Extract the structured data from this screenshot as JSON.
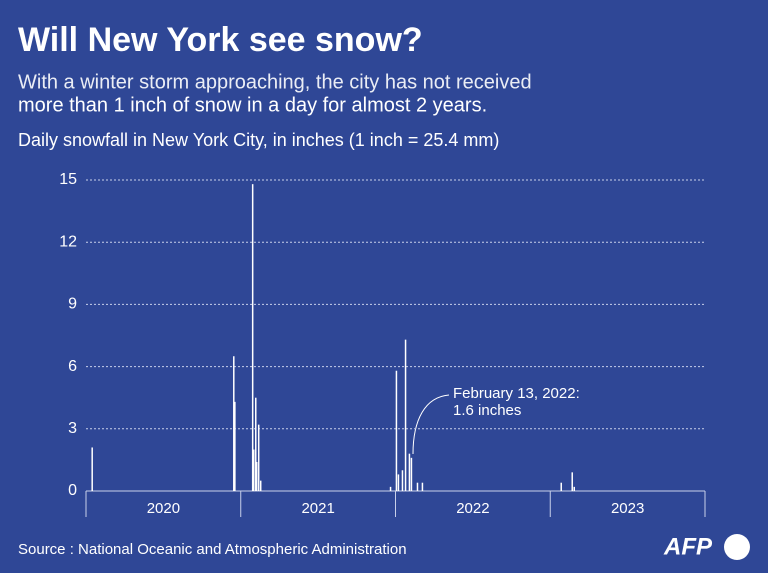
{
  "chart_data": {
    "type": "bar",
    "title": "Will New York see snow?",
    "subtitle": [
      "With a winter storm approaching, the city has not received",
      "more than 1 inch of snow in a day for almost 2 years."
    ],
    "y_label": "Daily snowfall in New York City, in inches (1 inch = 25.4 mm)",
    "x": [
      2020.04,
      2020.955,
      2020.962,
      2021.077,
      2021.084,
      2021.097,
      2021.103,
      2021.116,
      2021.129,
      2021.968,
      2022.006,
      2022.019,
      2022.045,
      2022.065,
      2022.09,
      2022.103,
      2022.142,
      2022.174,
      2023.071,
      2023.142,
      2023.155
    ],
    "values": [
      2.1,
      6.5,
      4.3,
      14.8,
      2.0,
      4.5,
      1.4,
      3.2,
      0.5,
      0.2,
      5.8,
      0.8,
      1.0,
      7.3,
      1.8,
      1.6,
      0.4,
      0.4,
      0.4,
      0.9,
      0.2
    ],
    "color": "#ffffff",
    "xlim": [
      2020,
      2024
    ],
    "xticks": [
      2020,
      2021,
      2022,
      2023,
      2024
    ],
    "year_labels": [
      "2020",
      "2021",
      "2022",
      "2023"
    ],
    "ylim": [
      0,
      15
    ],
    "yticks": [
      0,
      3,
      6,
      9,
      12,
      15
    ],
    "grid": true,
    "annotation": [
      "February 13, 2022:",
      "1.6 inches"
    ],
    "source": "Source : National Oceanic and Atmospheric Administration",
    "logo": "AFP"
  }
}
